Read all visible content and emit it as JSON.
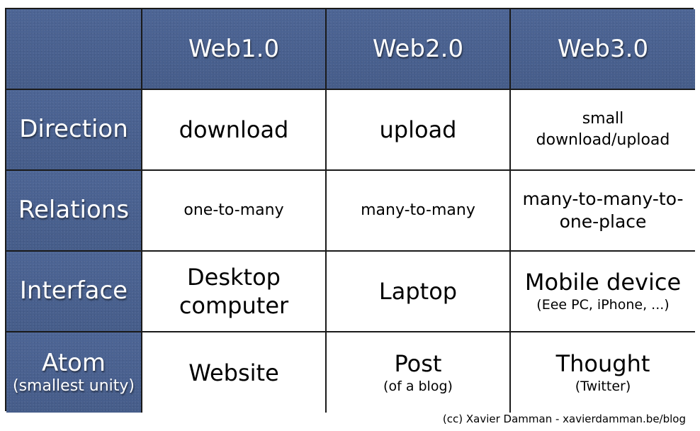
{
  "table": {
    "columns": [
      "Web1.0",
      "Web2.0",
      "Web3.0"
    ],
    "rows": [
      {
        "label": "Direction",
        "sublabel": "",
        "cells": [
          {
            "main": "download",
            "sub": ""
          },
          {
            "main": "upload",
            "sub": ""
          },
          {
            "main": "small download/upload",
            "sub": ""
          }
        ]
      },
      {
        "label": "Relations",
        "sublabel": "",
        "cells": [
          {
            "main": "one-to-many",
            "sub": ""
          },
          {
            "main": "many-to-many",
            "sub": ""
          },
          {
            "main": "many-to-many-to-one-place",
            "sub": ""
          }
        ]
      },
      {
        "label": "Interface",
        "sublabel": "",
        "cells": [
          {
            "main": "Desktop computer",
            "sub": ""
          },
          {
            "main": "Laptop",
            "sub": ""
          },
          {
            "main": "Mobile device",
            "sub": "(Eee PC, iPhone, ...)"
          }
        ]
      },
      {
        "label": "Atom",
        "sublabel": "(smallest unity)",
        "cells": [
          {
            "main": "Website",
            "sub": ""
          },
          {
            "main": "Post",
            "sub": "(of a blog)"
          },
          {
            "main": "Thought",
            "sub": "(Twitter)"
          }
        ]
      }
    ]
  },
  "credit": "(cc) Xavier Damman - xavierdamman.be/blog",
  "colors": {
    "header_blue": "#49618f",
    "grid_line": "#1a1a1a",
    "cell_bg": "#ffffff"
  }
}
